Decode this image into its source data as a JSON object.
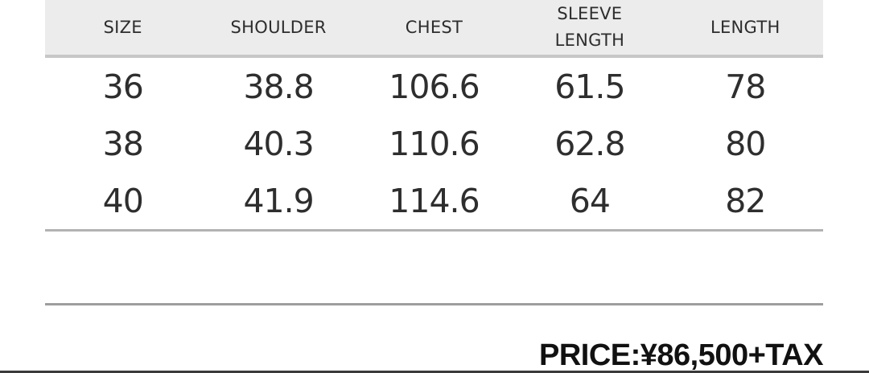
{
  "table": {
    "headers": [
      "SIZE",
      "SHOULDER",
      "CHEST",
      "SLEEVE\nLENGTH",
      "LENGTH"
    ],
    "rows": [
      [
        "36",
        "38.8",
        "106.6",
        "61.5",
        "78"
      ],
      [
        "38",
        "40.3",
        "110.6",
        "62.8",
        "80"
      ],
      [
        "40",
        "41.9",
        "114.6",
        "64",
        "82"
      ]
    ]
  },
  "price": {
    "label": "PRICE:¥86,500+TAX"
  },
  "colors": {
    "header_bg": "#ececec",
    "header_border": "#c7c7c7",
    "table_bottom_border": "#b2b2b2",
    "separator": "#9e9e9e",
    "bottom_bar": "#3a3a3a",
    "text": "#2e2e2e",
    "price_text": "#111111"
  }
}
